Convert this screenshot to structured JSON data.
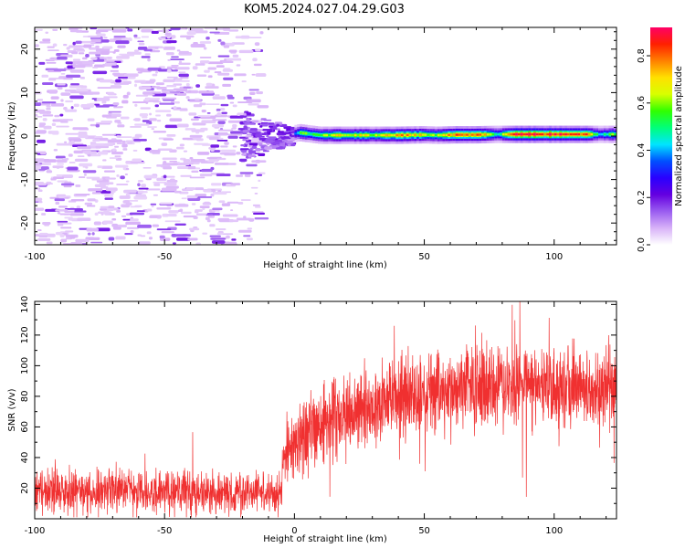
{
  "figure": {
    "title": "KOM5.2024.027.04.29.G03"
  },
  "chart_data": [
    {
      "type": "heatmap",
      "xlabel": "Height of straight line (km)",
      "ylabel": "Frequency (Hz)",
      "xlim": [
        -100,
        124
      ],
      "ylim": [
        -25,
        25
      ],
      "x_ticks": [
        -100,
        -50,
        0,
        50,
        100
      ],
      "y_ticks": [
        -20,
        -10,
        0,
        10,
        20
      ],
      "colorbar": {
        "label": "Normalized spectral amplitude",
        "ticks": [
          0.0,
          0.2,
          0.4,
          0.6,
          0.8
        ],
        "tick_labels": [
          "0.0",
          "0.2",
          "0.4",
          "0.6",
          "0.8"
        ],
        "range": [
          0,
          0.92
        ],
        "colormap": [
          "#ffffff",
          "#d8b2f8",
          "#9a5cf0",
          "#6400e0",
          "#2a00ff",
          "#0050ff",
          "#00e5ff",
          "#00ff7a",
          "#30ff00",
          "#d8ff00",
          "#ffe000",
          "#ff8000",
          "#ff2000",
          "#ff0066"
        ]
      },
      "noise_region": {
        "x_range": [
          -100,
          -18
        ],
        "freq_range": [
          -25,
          25
        ],
        "typical_amplitude": 0.05,
        "peak_amplitude": 0.18
      },
      "transition_region": {
        "x_range": [
          -20,
          0
        ],
        "freq_center": 0,
        "freq_spread_hz": 6,
        "amplitude": 0.15
      },
      "signal_band": [
        {
          "x": 0,
          "freq_hz": 0.5,
          "amplitude": 0.3
        },
        {
          "x": 2,
          "freq_hz": 0.8,
          "amplitude": 0.55
        },
        {
          "x": 10,
          "freq_hz": 0.2,
          "amplitude": 0.6
        },
        {
          "x": 20,
          "freq_hz": 0.2,
          "amplitude": 0.7
        },
        {
          "x": 30,
          "freq_hz": 0.2,
          "amplitude": 0.65
        },
        {
          "x": 40,
          "freq_hz": 0.2,
          "amplitude": 0.75
        },
        {
          "x": 50,
          "freq_hz": 0.3,
          "amplitude": 0.7
        },
        {
          "x": 55,
          "freq_hz": 0.2,
          "amplitude": 0.6
        },
        {
          "x": 62,
          "freq_hz": 0.3,
          "amplitude": 0.85
        },
        {
          "x": 70,
          "freq_hz": 0.3,
          "amplitude": 0.85
        },
        {
          "x": 78,
          "freq_hz": 0.4,
          "amplitude": 0.5
        },
        {
          "x": 85,
          "freq_hz": 0.4,
          "amplitude": 0.9
        },
        {
          "x": 100,
          "freq_hz": 0.4,
          "amplitude": 0.9
        },
        {
          "x": 112,
          "freq_hz": 0.4,
          "amplitude": 0.88
        },
        {
          "x": 118,
          "freq_hz": 0.4,
          "amplitude": 0.45
        },
        {
          "x": 124,
          "freq_hz": 0.4,
          "amplitude": 0.6
        }
      ]
    },
    {
      "type": "line",
      "xlabel": "Height of straight line (km)",
      "ylabel": "SNR (v/v)",
      "xlim": [
        -100,
        124
      ],
      "ylim": [
        0,
        142
      ],
      "x_ticks": [
        -100,
        -50,
        0,
        50,
        100
      ],
      "y_ticks": [
        20,
        40,
        60,
        80,
        100,
        120,
        140
      ],
      "series": [
        {
          "color": "#f03030",
          "x": [
            -100,
            -90,
            -80,
            -70,
            -60,
            -50,
            -40,
            -30,
            -20,
            -10,
            -5,
            -4,
            0,
            5,
            10,
            20,
            30,
            40,
            50,
            60,
            70,
            80,
            90,
            100,
            110,
            124
          ],
          "mean": [
            17,
            18,
            18,
            19,
            17,
            17,
            18,
            17,
            17,
            17,
            18,
            45,
            48,
            55,
            60,
            68,
            74,
            79,
            82,
            84,
            85,
            85,
            86,
            86,
            86,
            87
          ],
          "spread": [
            9,
            10,
            10,
            11,
            9,
            10,
            10,
            9,
            9,
            8,
            8,
            15,
            16,
            17,
            17,
            18,
            18,
            18,
            18,
            18,
            18,
            18,
            18,
            18,
            17,
            17
          ]
        }
      ]
    }
  ]
}
